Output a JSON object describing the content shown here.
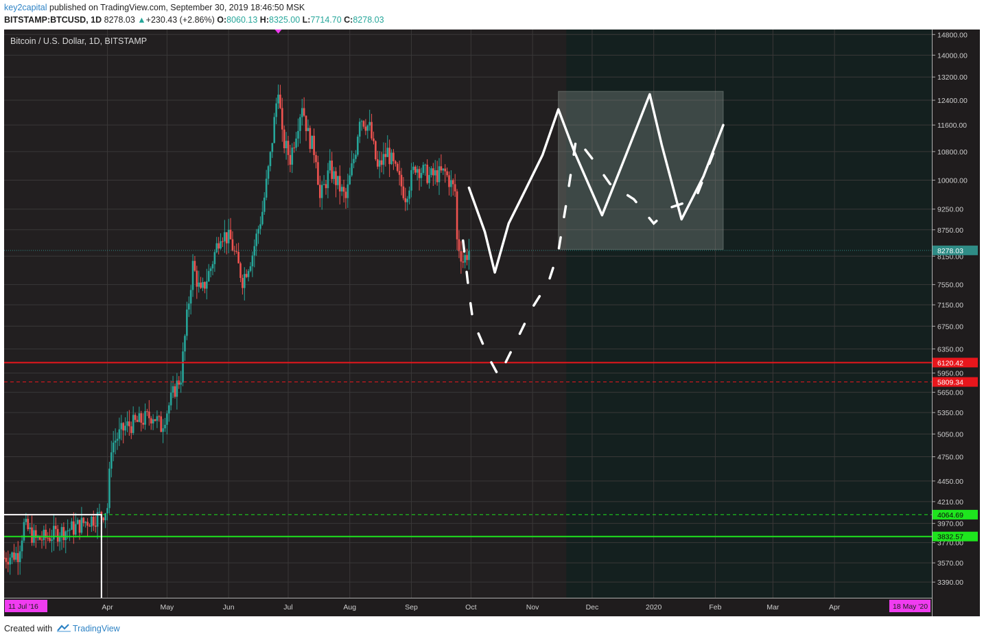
{
  "header": {
    "author": "key2capital",
    "published": "published on TradingView.com, September 30, 2019 18:46:50 MSK",
    "symbol": "BITSTAMP:BTCUSD, 1D",
    "last": "8278.03",
    "change": "+230.43 (+2.86%)",
    "o_label": "O:",
    "o": "8060.13",
    "h_label": "H:",
    "h": "8325.00",
    "l_label": "L:",
    "l": "7714.70",
    "c_label": "C:",
    "c": "8278.03"
  },
  "footer": {
    "created": "Created with",
    "brand": "TradingView"
  },
  "colors": {
    "background": "#221f20",
    "forecast_bg": "#14201f",
    "up": "#26a69a",
    "down": "#ef5350",
    "red_level": "#e8161c",
    "green_level": "#1ee51e",
    "price_line": "#2f8c86",
    "magenta": "#f03cf0"
  },
  "chart_data": {
    "type": "candlestick",
    "title": "Bitcoin / U.S. Dollar, 1D, BITSTAMP",
    "y_scale": "log",
    "ylim": [
      3250,
      15000
    ],
    "xlim": [
      "2019-02-08",
      "2020-05-20"
    ],
    "y_ticks": [
      14800,
      14000,
      13200,
      12400,
      11600,
      10800,
      10000,
      9250,
      8750,
      8150,
      7550,
      7150,
      6750,
      6350,
      5950,
      5650,
      5350,
      5050,
      4750,
      4450,
      4210,
      3970,
      3770,
      3570,
      3390
    ],
    "y_tick_labels": [
      "14800.00",
      "14000.00",
      "13200.00",
      "12400.00",
      "11600.00",
      "10800.00",
      "10000.00",
      "9250.00",
      "8750.00",
      "8150.00",
      "7550.00",
      "7150.00",
      "6750.00",
      "6350.00",
      "5950.00",
      "5650.00",
      "5350.00",
      "5050.00",
      "4750.00",
      "4450.00",
      "4210.00",
      "3970.00",
      "3770.00",
      "3570.00",
      "3390.00"
    ],
    "x_ticks": [
      {
        "date": "2019-04-01",
        "label": "Apr"
      },
      {
        "date": "2019-05-01",
        "label": "May"
      },
      {
        "date": "2019-06-01",
        "label": "Jun"
      },
      {
        "date": "2019-07-01",
        "label": "Jul"
      },
      {
        "date": "2019-08-01",
        "label": "Aug"
      },
      {
        "date": "2019-09-01",
        "label": "Sep"
      },
      {
        "date": "2019-10-01",
        "label": "Oct"
      },
      {
        "date": "2019-11-01",
        "label": "Nov"
      },
      {
        "date": "2019-12-01",
        "label": "Dec"
      },
      {
        "date": "2020-01-01",
        "label": "2020"
      },
      {
        "date": "2020-02-01",
        "label": "Feb"
      },
      {
        "date": "2020-03-01",
        "label": "Mar"
      },
      {
        "date": "2020-04-01",
        "label": "Apr"
      }
    ],
    "x_start_label": "11 Jul '16",
    "x_end_label": "18 May '20",
    "price_trace": [
      [
        "2019-02-08",
        3620
      ],
      [
        "2019-02-15",
        3660
      ],
      [
        "2019-02-18",
        3950
      ],
      [
        "2019-02-24",
        3800
      ],
      [
        "2019-03-01",
        3820
      ],
      [
        "2019-03-08",
        3880
      ],
      [
        "2019-03-15",
        3920
      ],
      [
        "2019-03-22",
        4000
      ],
      [
        "2019-03-29",
        4060
      ],
      [
        "2019-04-01",
        4150
      ],
      [
        "2019-04-03",
        4900
      ],
      [
        "2019-04-10",
        5150
      ],
      [
        "2019-04-17",
        5220
      ],
      [
        "2019-04-24",
        5320
      ],
      [
        "2019-04-28",
        5150
      ],
      [
        "2019-05-05",
        5700
      ],
      [
        "2019-05-08",
        5900
      ],
      [
        "2019-05-11",
        6900
      ],
      [
        "2019-05-14",
        7950
      ],
      [
        "2019-05-18",
        7350
      ],
      [
        "2019-05-23",
        7900
      ],
      [
        "2019-05-28",
        8700
      ],
      [
        "2019-06-02",
        8500
      ],
      [
        "2019-06-08",
        7650
      ],
      [
        "2019-06-13",
        8200
      ],
      [
        "2019-06-18",
        9200
      ],
      [
        "2019-06-22",
        10650
      ],
      [
        "2019-06-26",
        12900
      ],
      [
        "2019-06-28",
        11200
      ],
      [
        "2019-07-02",
        10600
      ],
      [
        "2019-07-08",
        12300
      ],
      [
        "2019-07-11",
        11300
      ],
      [
        "2019-07-15",
        10700
      ],
      [
        "2019-07-17",
        9500
      ],
      [
        "2019-07-22",
        10300
      ],
      [
        "2019-07-30",
        9500
      ],
      [
        "2019-08-04",
        10900
      ],
      [
        "2019-08-06",
        11900
      ],
      [
        "2019-08-11",
        11500
      ],
      [
        "2019-08-15",
        10300
      ],
      [
        "2019-08-20",
        10800
      ],
      [
        "2019-08-25",
        10100
      ],
      [
        "2019-08-29",
        9600
      ],
      [
        "2019-09-03",
        10400
      ],
      [
        "2019-09-10",
        10100
      ],
      [
        "2019-09-18",
        10200
      ],
      [
        "2019-09-23",
        9700
      ],
      [
        "2019-09-24",
        8500
      ],
      [
        "2019-09-27",
        8050
      ],
      [
        "2019-09-30",
        8278.03
      ]
    ],
    "last_price": 8278.03,
    "levels": [
      {
        "value": 6120.42,
        "label": "6120.42",
        "style": "solid",
        "color": "#e8161c"
      },
      {
        "value": 5809.34,
        "label": "5809.34",
        "style": "dashed",
        "color": "#e8161c"
      },
      {
        "value": 4064.69,
        "label": "4064.69",
        "style": "dashed",
        "color": "#1ee51e"
      },
      {
        "value": 3832.57,
        "label": "3832.57",
        "style": "solid",
        "color": "#1ee51e"
      }
    ],
    "forecast_start": "2019-11-18",
    "target_zone": {
      "from": "2019-11-14",
      "to": "2020-02-05",
      "low": 8300,
      "high": 12700
    },
    "forecast_solid": [
      [
        "2019-09-30",
        9800
      ],
      [
        "2019-10-08",
        8700
      ],
      [
        "2019-10-13",
        7800
      ],
      [
        "2019-10-20",
        8900
      ],
      [
        "2019-10-28",
        9700
      ],
      [
        "2019-11-06",
        10700
      ],
      [
        "2019-11-14",
        12100
      ],
      [
        "2019-11-22",
        10800
      ],
      [
        "2019-12-06",
        9100
      ],
      [
        "2019-12-18",
        10700
      ],
      [
        "2019-12-30",
        12600
      ],
      [
        "2020-01-05",
        11000
      ],
      [
        "2020-01-15",
        9000
      ],
      [
        "2020-01-26",
        10100
      ],
      [
        "2020-02-05",
        11600
      ]
    ],
    "forecast_dashed": [
      [
        "2019-09-27",
        8500
      ],
      [
        "2019-09-30",
        7400
      ],
      [
        "2019-10-02",
        6850
      ],
      [
        "2019-10-10",
        6200
      ],
      [
        "2019-10-15",
        5900
      ],
      [
        "2019-10-24",
        6500
      ],
      [
        "2019-11-01",
        7100
      ],
      [
        "2019-11-09",
        7600
      ],
      [
        "2019-11-14",
        8250
      ],
      [
        "2019-11-18",
        9400
      ],
      [
        "2019-11-23",
        11200
      ],
      [
        "2019-12-01",
        10600
      ],
      [
        "2019-12-10",
        9900
      ],
      [
        "2019-12-22",
        9500
      ],
      [
        "2020-01-01",
        8900
      ],
      [
        "2020-01-10",
        9300
      ],
      [
        "2020-01-22",
        9500
      ],
      [
        "2020-02-03",
        11200
      ]
    ]
  }
}
